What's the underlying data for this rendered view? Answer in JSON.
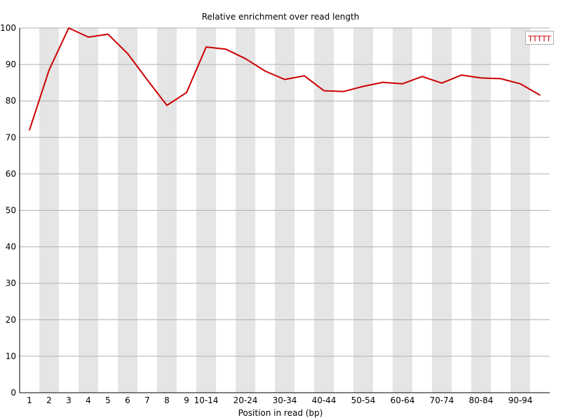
{
  "chart_data": {
    "type": "line",
    "title": "Relative enrichment over read length",
    "xlabel": "Position in read (bp)",
    "ylabel": "",
    "ylim": [
      0,
      100
    ],
    "yticks": [
      0,
      10,
      20,
      30,
      40,
      50,
      60,
      70,
      80,
      90,
      100
    ],
    "grid": true,
    "legend_position": "top-right",
    "categories": [
      "1",
      "2",
      "3",
      "4",
      "5",
      "6",
      "7",
      "8",
      "9",
      "10-14",
      "",
      "20-24",
      "",
      "30-34",
      "",
      "40-44",
      "",
      "50-54",
      "",
      "60-64",
      "",
      "70-74",
      "",
      "80-84",
      "",
      "90-94",
      ""
    ],
    "series": [
      {
        "name": "TTTTT",
        "color": "#cc0000",
        "values": [
          72.0,
          88.5,
          100.0,
          97.5,
          98.3,
          93.0,
          85.8,
          78.8,
          82.3,
          94.8,
          94.2,
          91.6,
          88.2,
          85.9,
          86.9,
          82.8,
          82.6,
          84.0,
          85.1,
          84.7,
          86.7,
          84.9,
          87.1,
          86.3,
          86.1,
          84.7,
          81.6
        ]
      }
    ]
  }
}
